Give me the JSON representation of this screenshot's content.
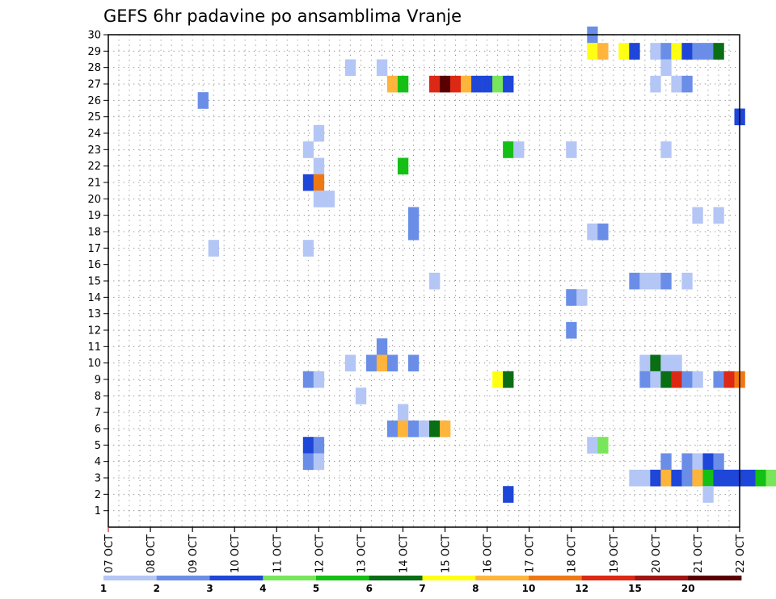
{
  "chart_data": {
    "type": "heatmap",
    "title": "GEFS 6hr padavine po ansamblima Vranje",
    "xlabel": "",
    "ylabel": "",
    "x_ticks": [
      "07 OCT",
      "08 OCT",
      "09 OCT",
      "10 OCT",
      "11 OCT",
      "12 OCT",
      "13 OCT",
      "14 OCT",
      "15 OCT",
      "16 OCT",
      "17 OCT",
      "18 OCT",
      "19 OCT",
      "20 OCT",
      "21 OCT",
      "22 OCT"
    ],
    "x_range_days": [
      0,
      15
    ],
    "y_ticks": [
      1,
      2,
      3,
      4,
      5,
      6,
      7,
      8,
      9,
      10,
      11,
      12,
      13,
      14,
      15,
      16,
      17,
      18,
      19,
      20,
      21,
      22,
      23,
      24,
      25,
      26,
      27,
      28,
      29,
      30
    ],
    "ylim": [
      0,
      30
    ],
    "grid": true,
    "legend_placement": "bottom",
    "legend": {
      "labels": [
        "1",
        "2",
        "3",
        "4",
        "5",
        "6",
        "7",
        "8",
        "10",
        "12",
        "15",
        "20"
      ],
      "colors": [
        "#b4c6f5",
        "#6a8ee8",
        "#1e46d8",
        "#78e65a",
        "#14c014",
        "#0a6e14",
        "#ffff14",
        "#ffb43c",
        "#f07814",
        "#dc2814",
        "#a01414",
        "#5a0000"
      ]
    },
    "cells": [
      [
        30,
        11.5,
        1
      ],
      [
        29,
        11.5,
        6
      ],
      [
        29,
        11.75,
        7
      ],
      [
        29,
        12.25,
        6
      ],
      [
        29,
        12.5,
        2
      ],
      [
        29,
        13.0,
        0
      ],
      [
        29,
        13.25,
        1
      ],
      [
        29,
        13.5,
        6
      ],
      [
        29,
        13.75,
        2
      ],
      [
        29,
        14.0,
        1
      ],
      [
        29,
        14.25,
        1
      ],
      [
        29,
        14.5,
        5
      ],
      [
        28,
        5.75,
        0
      ],
      [
        28,
        6.5,
        0
      ],
      [
        28,
        13.25,
        0
      ],
      [
        27,
        6.75,
        7
      ],
      [
        27,
        7.0,
        4
      ],
      [
        27,
        7.75,
        9
      ],
      [
        27,
        8.0,
        11
      ],
      [
        27,
        8.25,
        9
      ],
      [
        27,
        8.5,
        7
      ],
      [
        27,
        8.75,
        2
      ],
      [
        27,
        9.0,
        2
      ],
      [
        27,
        9.25,
        3
      ],
      [
        27,
        9.5,
        2
      ],
      [
        27,
        13.0,
        0
      ],
      [
        27,
        13.5,
        0
      ],
      [
        27,
        13.75,
        1
      ],
      [
        26,
        2.25,
        1
      ],
      [
        25,
        15.0,
        2
      ],
      [
        24,
        5.0,
        0
      ],
      [
        23,
        4.75,
        0
      ],
      [
        23,
        9.5,
        4
      ],
      [
        23,
        9.75,
        0
      ],
      [
        23,
        11.0,
        0
      ],
      [
        23,
        13.25,
        0
      ],
      [
        22,
        5.0,
        0
      ],
      [
        22,
        7.0,
        4
      ],
      [
        21,
        4.75,
        2
      ],
      [
        21,
        5.0,
        8
      ],
      [
        20,
        5.0,
        0
      ],
      [
        20,
        5.25,
        0
      ],
      [
        19,
        7.25,
        1
      ],
      [
        19,
        14.0,
        0
      ],
      [
        19,
        14.5,
        0
      ],
      [
        18,
        7.25,
        1
      ],
      [
        18,
        11.5,
        0
      ],
      [
        18,
        11.75,
        1
      ],
      [
        17,
        2.5,
        0
      ],
      [
        17,
        4.75,
        0
      ],
      [
        15,
        7.75,
        0
      ],
      [
        15,
        12.5,
        1
      ],
      [
        15,
        12.75,
        0
      ],
      [
        15,
        13.0,
        0
      ],
      [
        15,
        13.25,
        1
      ],
      [
        15,
        13.75,
        0
      ],
      [
        14,
        11.0,
        1
      ],
      [
        14,
        11.25,
        0
      ],
      [
        12,
        11.0,
        1
      ],
      [
        11,
        6.5,
        1
      ],
      [
        10,
        5.75,
        0
      ],
      [
        10,
        6.25,
        1
      ],
      [
        10,
        6.5,
        7
      ],
      [
        10,
        6.75,
        1
      ],
      [
        10,
        7.25,
        1
      ],
      [
        10,
        12.75,
        0
      ],
      [
        10,
        13.0,
        5
      ],
      [
        10,
        13.25,
        0
      ],
      [
        10,
        13.5,
        0
      ],
      [
        9,
        4.75,
        1
      ],
      [
        9,
        5.0,
        0
      ],
      [
        9,
        9.25,
        6
      ],
      [
        9,
        9.5,
        5
      ],
      [
        9,
        12.75,
        1
      ],
      [
        9,
        13.0,
        0
      ],
      [
        9,
        13.25,
        5
      ],
      [
        9,
        13.5,
        9
      ],
      [
        9,
        13.75,
        1
      ],
      [
        9,
        14.0,
        0
      ],
      [
        9,
        14.5,
        1
      ],
      [
        9,
        14.75,
        9
      ],
      [
        9,
        15.0,
        8
      ],
      [
        8,
        6.0,
        0
      ],
      [
        7,
        7.0,
        0
      ],
      [
        6,
        6.75,
        1
      ],
      [
        6,
        7.0,
        7
      ],
      [
        6,
        7.25,
        1
      ],
      [
        6,
        7.5,
        0
      ],
      [
        6,
        7.75,
        5
      ],
      [
        6,
        8.0,
        7
      ],
      [
        5,
        4.75,
        2
      ],
      [
        5,
        5.0,
        1
      ],
      [
        5,
        11.5,
        0
      ],
      [
        5,
        11.75,
        3
      ],
      [
        4,
        4.75,
        1
      ],
      [
        4,
        5.0,
        0
      ],
      [
        4,
        13.25,
        1
      ],
      [
        4,
        13.75,
        1
      ],
      [
        4,
        14.0,
        0
      ],
      [
        4,
        14.25,
        2
      ],
      [
        4,
        14.5,
        1
      ],
      [
        3,
        12.5,
        0
      ],
      [
        3,
        12.75,
        0
      ],
      [
        3,
        13.0,
        2
      ],
      [
        3,
        13.25,
        7
      ],
      [
        3,
        13.5,
        2
      ],
      [
        3,
        13.75,
        1
      ],
      [
        3,
        14.0,
        7
      ],
      [
        3,
        14.25,
        4
      ],
      [
        3,
        14.5,
        2
      ],
      [
        3,
        14.75,
        2
      ],
      [
        3,
        15.0,
        2
      ],
      [
        3,
        15.25,
        2
      ],
      [
        3,
        15.5,
        4
      ],
      [
        3,
        15.75,
        3
      ],
      [
        2,
        9.5,
        2
      ],
      [
        2,
        14.25,
        0
      ]
    ]
  }
}
